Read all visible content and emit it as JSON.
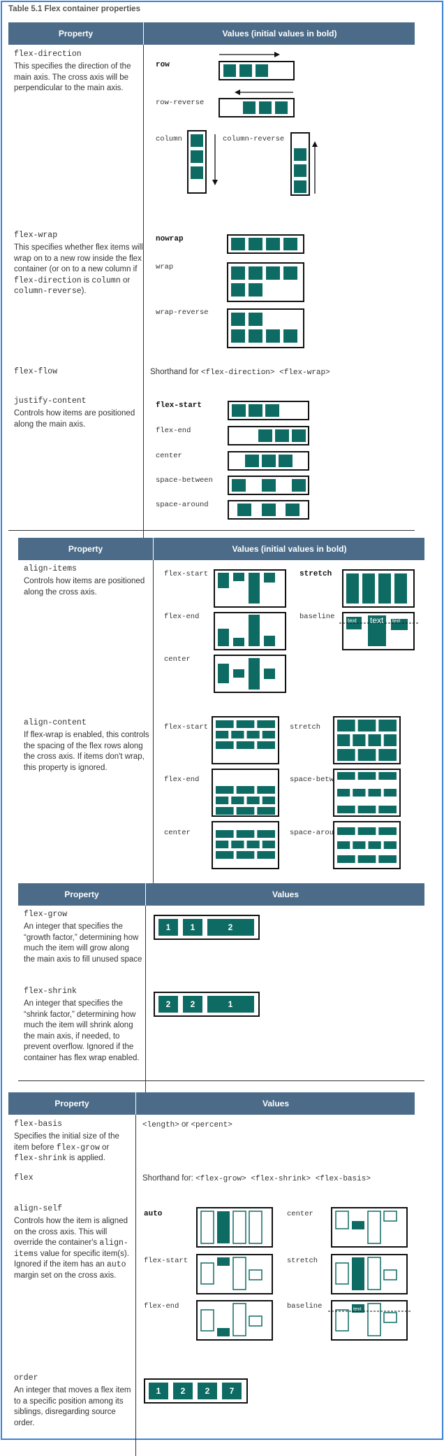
{
  "caption": "Table 5.1    Flex container properties",
  "headers": {
    "property": "Property",
    "values_initial": "Values (initial values in bold)",
    "values": "Values"
  },
  "s1": {
    "flex_direction": {
      "name": "flex-direction",
      "desc": "This specifies the direction of the main axis. The cross axis will be perpendicular to the main axis.",
      "row": "row",
      "row_reverse": "row-reverse",
      "column": "column",
      "column_reverse": "column-reverse"
    },
    "flex_wrap": {
      "name": "flex-wrap",
      "desc_a": "This specifies whether flex items will wrap on to a new row inside the flex container (or on to a new column if ",
      "desc_code1": "flex-direction",
      "desc_b": " is ",
      "desc_code2": "column",
      "desc_c": " or ",
      "desc_code3": "column-reverse",
      "desc_d": ").",
      "nowrap": "nowrap",
      "wrap": "wrap",
      "wrap_reverse": "wrap-reverse"
    },
    "flex_flow": {
      "name": "flex-flow",
      "value_a": "Shorthand for ",
      "value_code": "<flex-direction> <flex-wrap>"
    },
    "justify_content": {
      "name": "justify-content",
      "desc": "Controls how items are positioned along the main axis.",
      "flex_start": "flex-start",
      "flex_end": "flex-end",
      "center": "center",
      "space_between": "space-between",
      "space_around": "space-around"
    }
  },
  "s2": {
    "align_items": {
      "name": "align-items",
      "desc": "Controls how items are positioned along the cross axis.",
      "flex_start": "flex-start",
      "stretch": "stretch",
      "flex_end": "flex-end",
      "baseline": "baseline",
      "center": "center",
      "text": "text"
    },
    "align_content": {
      "name": "align-content",
      "desc": "If flex-wrap is enabled, this controls the spacing of the flex rows along the cross axis. If items don't wrap, this property is ignored.",
      "flex_start": "flex-start",
      "stretch": "stretch",
      "flex_end": "flex-end",
      "space_between": "space-between",
      "center": "center",
      "space_around": "space-around"
    }
  },
  "s3": {
    "flex_grow": {
      "name": "flex-grow",
      "desc": "An integer that specifies the “growth factor,” determining how much the item will grow along the main axis to fill unused space",
      "items": [
        "1",
        "1",
        "2"
      ]
    },
    "flex_shrink": {
      "name": "flex-shrink",
      "desc": "An integer that specifies the “shrink factor,” determining how much the item will shrink along the main axis, if needed, to prevent overflow. Ignored if the container has flex wrap enabled.",
      "items": [
        "2",
        "2",
        "1"
      ]
    }
  },
  "s4": {
    "flex_basis": {
      "name": "flex-basis",
      "desc_a": "Specifies the initial size of the item before ",
      "desc_code1": "flex-grow",
      "desc_b": " or ",
      "desc_code2": "flex-shrink",
      "desc_c": " is applied.",
      "value_code1": "<length>",
      "value_or": " or ",
      "value_code2": "<percent>"
    },
    "flex": {
      "name": "flex",
      "value_a": "Shorthand for: ",
      "value_code": "<flex-grow> <flex-shrink> <flex-basis>"
    },
    "align_self": {
      "name": "align-self",
      "desc_a": "Controls how the item is aligned on the cross axis. This will override the container's ",
      "desc_code1": "align-items",
      "desc_b": " value for specific item(s). Ignored if the item has an ",
      "desc_code2": "auto",
      "desc_c": " margin set on the cross axis.",
      "auto": "auto",
      "center": "center",
      "flex_start": "flex-start",
      "stretch": "stretch",
      "flex_end": "flex-end",
      "baseline": "baseline",
      "text": "text"
    },
    "order": {
      "name": "order",
      "desc": "An integer that moves a flex item to a specific position among its siblings, disregarding source order.",
      "items": [
        "1",
        "2",
        "2",
        "7"
      ]
    }
  }
}
